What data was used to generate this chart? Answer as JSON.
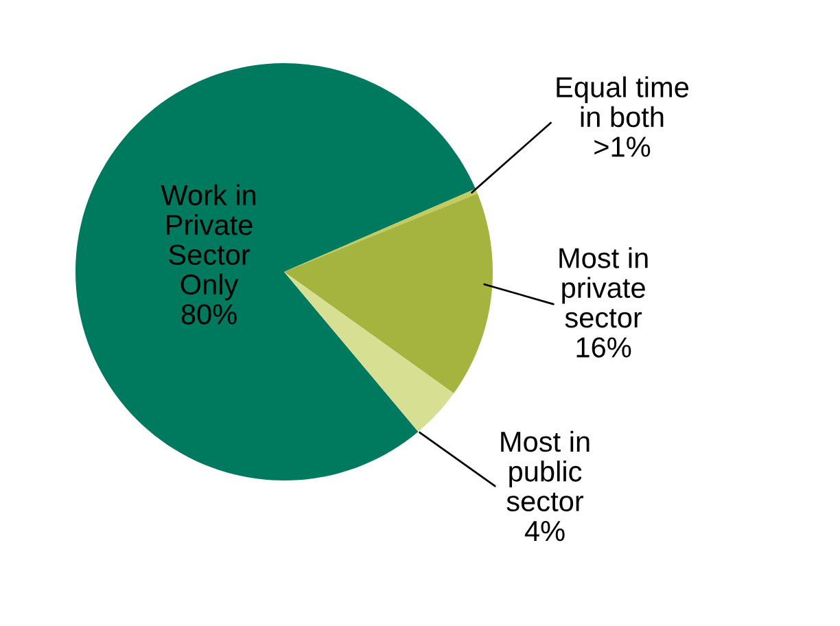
{
  "chart_data": {
    "type": "pie",
    "categories": [
      "Work in\nPrivate\nSector\nOnly",
      "Equal time\nin both",
      "Most in\nprivate\nsector",
      "Most in\npublic\nsector"
    ],
    "values": [
      79.6,
      0.4,
      16,
      4
    ],
    "value_labels": [
      "80%",
      ">1%",
      "16%",
      "4%"
    ],
    "colors": [
      "#007a5e",
      "#c2cc5e",
      "#a5b33f",
      "#d6df92"
    ],
    "legend": false
  }
}
